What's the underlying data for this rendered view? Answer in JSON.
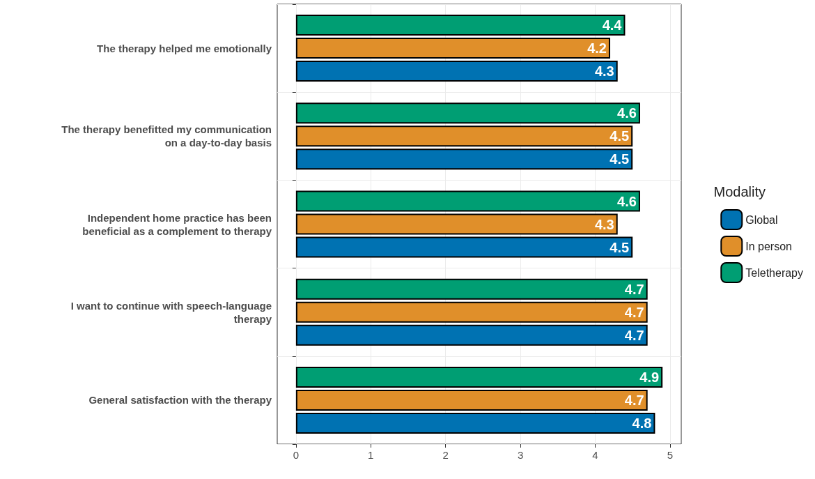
{
  "chart_data": {
    "type": "bar",
    "orientation": "horizontal",
    "legend_title": "Modality",
    "legend": "right",
    "categories": [
      "The therapy helped me emotionally",
      "The therapy benefitted my communication\non a day-to-day basis",
      "Independent home practice has been\nbeneficial as a complement to therapy",
      "I want to continue with speech-language\ntherapy",
      "General satisfaction with the therapy"
    ],
    "series": [
      {
        "name": "Global",
        "color": "#0072b2",
        "values": [
          4.3,
          4.5,
          4.5,
          4.7,
          4.8
        ]
      },
      {
        "name": "In person",
        "color": "#e08f2a",
        "values": [
          4.2,
          4.5,
          4.3,
          4.7,
          4.7
        ]
      },
      {
        "name": "Teletherapy",
        "color": "#009e73",
        "values": [
          4.4,
          4.6,
          4.6,
          4.7,
          4.9
        ]
      }
    ],
    "xlim": [
      -0.25,
      5.15
    ],
    "xticks": [
      0,
      1,
      2,
      3,
      4,
      5
    ],
    "grid": true,
    "data_labels": true
  }
}
